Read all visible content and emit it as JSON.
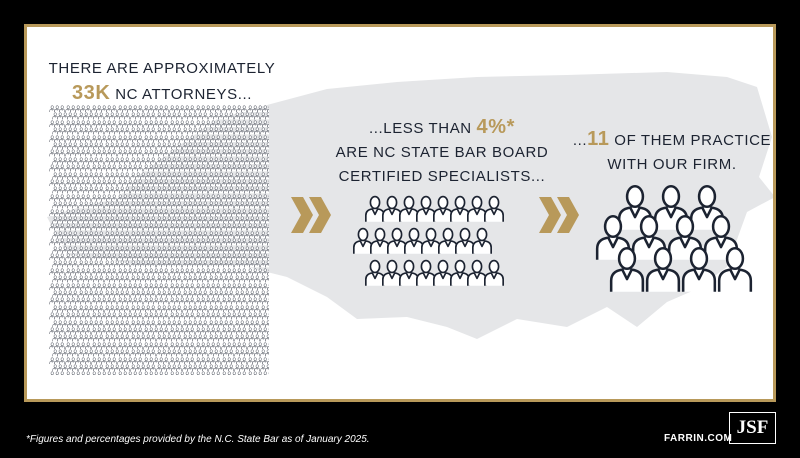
{
  "stat1": {
    "line1": "THERE ARE APPROXIMATELY",
    "highlight": "33K",
    "rest": "NC ATTORNEYS..."
  },
  "stat2": {
    "prefix": "...LESS THAN",
    "highlight": "4%*",
    "line2": "ARE NC STATE BAR BOARD",
    "line3": "CERTIFIED SPECIALISTS..."
  },
  "stat3": {
    "prefix": "...",
    "highlight": "11",
    "rest": "OF THEM PRACTICE",
    "line2": "WITH OUR FIRM."
  },
  "footnote": "*Figures and percentages provided by the N.C. State Bar as of January 2025.",
  "website": "FARRIN.COM",
  "logo": "JSF",
  "colors": {
    "gold": "#b8995a",
    "navy": "#1c2331",
    "map": "#e5e6e8",
    "background": "#000000"
  },
  "icons": {
    "arrow": "double-chevron-right-icon",
    "person": "attorney-figure-icon",
    "map": "north-carolina-map"
  }
}
